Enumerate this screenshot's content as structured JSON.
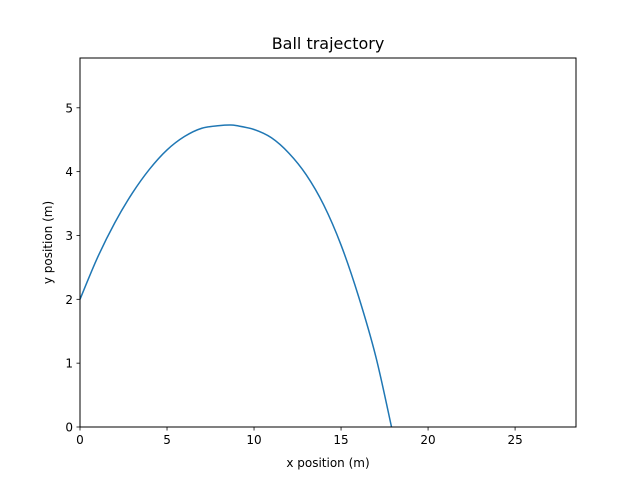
{
  "chart_data": {
    "type": "line",
    "title": "Ball trajectory",
    "xlabel": "x position (m)",
    "ylabel": "y position (m)",
    "xlim": [
      0,
      28.5
    ],
    "ylim": [
      0,
      5.78
    ],
    "xticks": [
      0,
      5,
      10,
      15,
      20,
      25
    ],
    "yticks": [
      0,
      1,
      2,
      3,
      4,
      5
    ],
    "grid": false,
    "series": [
      {
        "color": "#1f77b4",
        "x": [
          0,
          1,
          2,
          3,
          4,
          5,
          6,
          7,
          8,
          8.6,
          9,
          10,
          11,
          12,
          13,
          14,
          15,
          16,
          17,
          17.9
        ],
        "y": [
          2.0,
          2.65,
          3.2,
          3.66,
          4.04,
          4.34,
          4.55,
          4.68,
          4.72,
          4.73,
          4.72,
          4.66,
          4.53,
          4.29,
          3.95,
          3.48,
          2.85,
          2.05,
          1.1,
          0.0
        ]
      }
    ]
  }
}
